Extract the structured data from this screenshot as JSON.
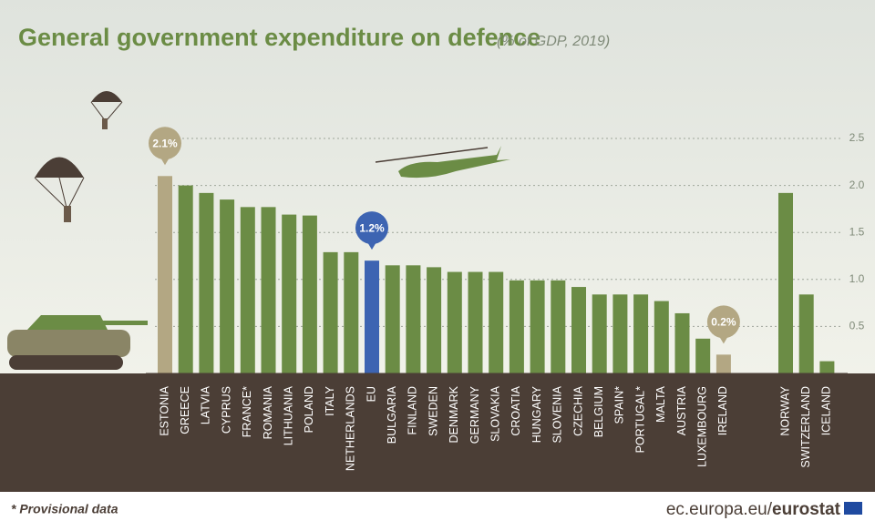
{
  "chart_data": {
    "type": "bar",
    "title": "General government expenditure on defence",
    "subtitle": "(% of GDP, 2019)",
    "categories": [
      "ESTONIA",
      "GREECE",
      "LATVIA",
      "CYPRUS",
      "FRANCE*",
      "ROMANIA",
      "LITHUANIA",
      "POLAND",
      "ITALY",
      "NETHERLANDS",
      "EU",
      "BULGARIA",
      "FINLAND",
      "SWEDEN",
      "DENMARK",
      "GERMANY",
      "SLOVAKIA",
      "CROATIA",
      "HUNGARY",
      "SLOVENIA",
      "CZECHIA",
      "BELGIUM",
      "SPAIN*",
      "PORTUGAL*",
      "MALTA",
      "AUSTRIA",
      "LUXEMBOURG",
      "IRELAND",
      null,
      null,
      "NORWAY",
      "SWITZERLAND",
      "ICELAND"
    ],
    "values": [
      2.1,
      2.0,
      1.92,
      1.85,
      1.77,
      1.77,
      1.69,
      1.68,
      1.29,
      1.29,
      1.2,
      1.15,
      1.15,
      1.13,
      1.08,
      1.08,
      1.08,
      0.99,
      0.99,
      0.99,
      0.92,
      0.84,
      0.84,
      0.84,
      0.77,
      0.64,
      0.37,
      0.2,
      null,
      null,
      1.92,
      0.84,
      0.13
    ],
    "value_labels": [
      "2.1%",
      null,
      null,
      null,
      null,
      null,
      null,
      null,
      null,
      null,
      "1.2%",
      null,
      null,
      null,
      null,
      null,
      null,
      null,
      null,
      null,
      null,
      null,
      null,
      null,
      null,
      null,
      null,
      "0.2%",
      null,
      null,
      null,
      null,
      null
    ],
    "colors": [
      "#b3a783",
      "#6b8c45",
      "#6b8c45",
      "#6b8c45",
      "#6b8c45",
      "#6b8c45",
      "#6b8c45",
      "#6b8c45",
      "#6b8c45",
      "#6b8c45",
      "#3d64b2",
      "#6b8c45",
      "#6b8c45",
      "#6b8c45",
      "#6b8c45",
      "#6b8c45",
      "#6b8c45",
      "#6b8c45",
      "#6b8c45",
      "#6b8c45",
      "#6b8c45",
      "#6b8c45",
      "#6b8c45",
      "#6b8c45",
      "#6b8c45",
      "#6b8c45",
      "#6b8c45",
      "#b3a783",
      null,
      null,
      "#6b8c45",
      "#6b8c45",
      "#6b8c45"
    ],
    "ylim": [
      0,
      2.5
    ],
    "yticks": [
      0.5,
      {
        "value": 1,
        "label": "1.0"
      },
      1.5,
      {
        "value": 2,
        "label": "2.0"
      },
      2.5
    ],
    "grid": true,
    "footnote": "* Provisional data",
    "source": "ec.europa.eu/",
    "source_brand": "eurostat"
  }
}
